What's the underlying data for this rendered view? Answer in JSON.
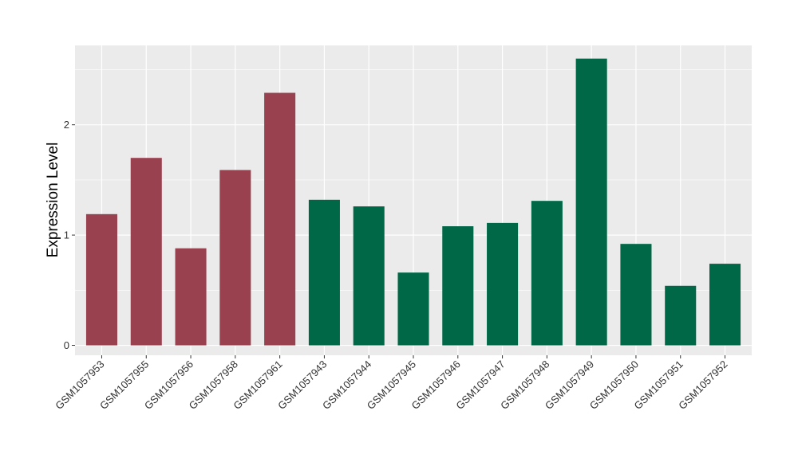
{
  "chart_data": {
    "type": "bar",
    "title": "",
    "xlabel": "",
    "ylabel": "Expression Level",
    "categories": [
      "GSM1057953",
      "GSM1057955",
      "GSM1057956",
      "GSM1057958",
      "GSM1057961",
      "GSM1057943",
      "GSM1057944",
      "GSM1057945",
      "GSM1057946",
      "GSM1057947",
      "GSM1057948",
      "GSM1057949",
      "GSM1057950",
      "GSM1057951",
      "GSM1057952"
    ],
    "values": [
      1.19,
      1.7,
      0.88,
      1.59,
      2.29,
      1.32,
      1.26,
      0.66,
      1.08,
      1.11,
      1.31,
      2.6,
      0.92,
      0.54,
      0.74
    ],
    "groups": [
      "a",
      "a",
      "a",
      "a",
      "a",
      "b",
      "b",
      "b",
      "b",
      "b",
      "b",
      "b",
      "b",
      "b",
      "b"
    ],
    "group_colors": {
      "a": "#9A4150",
      "b": "#006747"
    },
    "yticks": [
      0,
      1,
      2
    ],
    "ytick_labels": [
      "0",
      "1",
      "2"
    ],
    "ylim": [
      -0.09,
      2.72
    ],
    "grid": true,
    "background": "#EBEBEB"
  }
}
